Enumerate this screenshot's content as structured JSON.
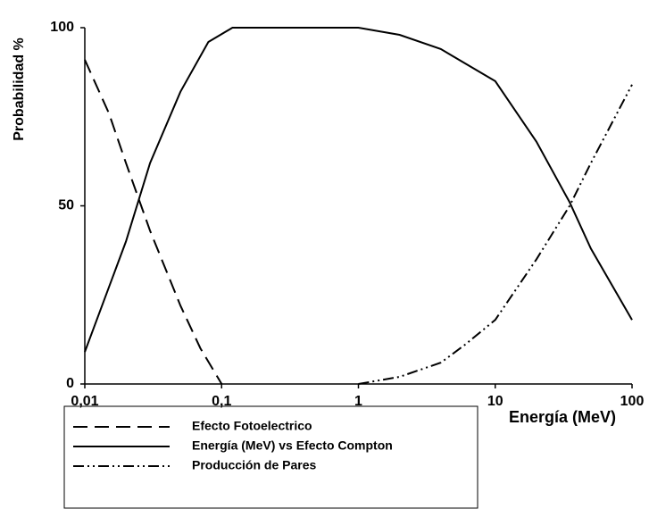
{
  "chart_data": {
    "type": "line",
    "xlabel": "Energía (MeV)",
    "ylabel": "Probabilidad %",
    "xscale": "log",
    "xlim": [
      0.01,
      100
    ],
    "xticks": [
      {
        "value": 0.01,
        "label": "0,01"
      },
      {
        "value": 0.1,
        "label": "0,1"
      },
      1,
      10,
      100
    ],
    "ylim": [
      0,
      100
    ],
    "yticks": [
      0,
      50,
      100
    ],
    "grid": false,
    "legend": "bottom-left",
    "series": [
      {
        "name": "Efecto Fotoelectrico",
        "color": "#000000",
        "dash": "dashed",
        "x": [
          0.01,
          0.015,
          0.02,
          0.03,
          0.05,
          0.07,
          0.1
        ],
        "values": [
          91,
          76,
          62,
          43,
          22,
          10,
          0
        ]
      },
      {
        "name": "Energía (MeV) vs Efecto Compton",
        "color": "#000000",
        "dash": "solid",
        "x": [
          0.01,
          0.02,
          0.03,
          0.05,
          0.08,
          0.12,
          1,
          2,
          4,
          6,
          10,
          20,
          35,
          50,
          100
        ],
        "values": [
          9,
          40,
          62,
          82,
          96,
          100,
          100,
          98,
          94,
          90,
          85,
          68,
          51,
          38,
          18
        ]
      },
      {
        "name": "Producción de Pares",
        "color": "#000000",
        "dash": "dashdotdot",
        "x": [
          1,
          2,
          4,
          6,
          10,
          20,
          35,
          50,
          100
        ],
        "values": [
          0,
          2,
          6,
          11,
          18,
          35,
          50,
          62,
          84
        ]
      }
    ]
  }
}
